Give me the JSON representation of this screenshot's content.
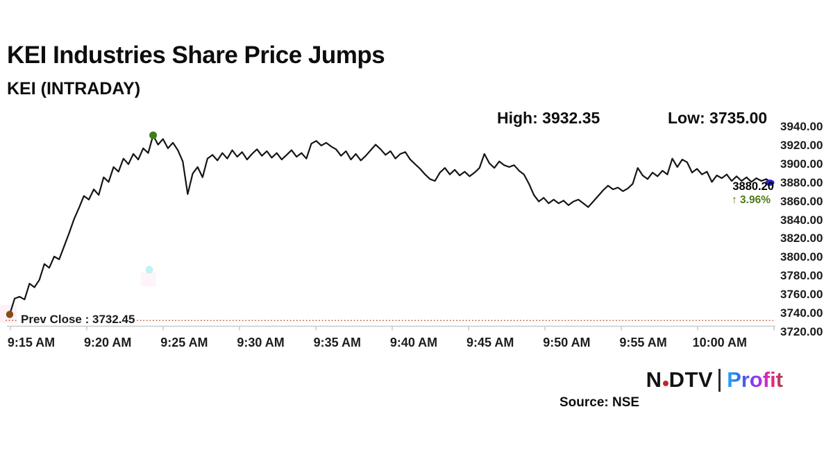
{
  "header": {
    "title": "KEI Industries Share Price Jumps",
    "subtitle": "KEI (INTRADAY)"
  },
  "stats": {
    "high_label": "High: 3932.35",
    "low_label": "Low: 3735.00"
  },
  "chart_data": {
    "type": "line",
    "title": "KEI (INTRADAY)",
    "symbol": "KEI",
    "high": 3932.35,
    "low": 3735.0,
    "prev_close": 3732.45,
    "prev_close_label": "Prev Close : 3732.45",
    "last_price": "3880.20",
    "change_pct": "↑ 3.96%",
    "x_ticks": [
      "9:15 AM",
      "9:20 AM",
      "9:25 AM",
      "9:30 AM",
      "9:35 AM",
      "9:40 AM",
      "9:45 AM",
      "9:50 AM",
      "9:55 AM",
      "10:00 AM"
    ],
    "y_ticks": [
      "3940.00",
      "3920.00",
      "3900.00",
      "3880.00",
      "3860.00",
      "3840.00",
      "3820.00",
      "3800.00",
      "3780.00",
      "3760.00",
      "3740.00",
      "3720.00"
    ],
    "ylim": [
      3720,
      3940
    ],
    "grid": false,
    "legend": "none",
    "values": [
      3739,
      3756,
      3758,
      3755,
      3772,
      3768,
      3776,
      3793,
      3789,
      3801,
      3798,
      3812,
      3826,
      3841,
      3853,
      3866,
      3862,
      3873,
      3867,
      3886,
      3881,
      3897,
      3892,
      3906,
      3900,
      3911,
      3905,
      3917,
      3912,
      3931,
      3921,
      3927,
      3917,
      3923,
      3915,
      3903,
      3868,
      3890,
      3897,
      3886,
      3906,
      3910,
      3904,
      3912,
      3906,
      3915,
      3908,
      3913,
      3905,
      3911,
      3916,
      3909,
      3914,
      3907,
      3912,
      3905,
      3910,
      3915,
      3908,
      3912,
      3906,
      3922,
      3925,
      3920,
      3923,
      3919,
      3916,
      3909,
      3914,
      3905,
      3911,
      3904,
      3909,
      3915,
      3921,
      3916,
      3910,
      3914,
      3906,
      3911,
      3913,
      3905,
      3900,
      3895,
      3889,
      3884,
      3882,
      3891,
      3896,
      3889,
      3894,
      3888,
      3892,
      3887,
      3891,
      3896,
      3911,
      3901,
      3896,
      3903,
      3899,
      3897,
      3899,
      3893,
      3889,
      3879,
      3867,
      3860,
      3864,
      3858,
      3862,
      3858,
      3861,
      3856,
      3860,
      3862,
      3858,
      3854,
      3860,
      3866,
      3872,
      3877,
      3873,
      3875,
      3871,
      3874,
      3879,
      3896,
      3888,
      3884,
      3891,
      3887,
      3893,
      3889,
      3906,
      3897,
      3905,
      3902,
      3891,
      3895,
      3889,
      3892,
      3881,
      3888,
      3885,
      3889,
      3882,
      3887,
      3882,
      3886,
      3881,
      3885,
      3882,
      3884,
      3880.2
    ],
    "high_marker_index": 29,
    "colors": {
      "line": "#141414",
      "open_marker": "#8a4a15",
      "high_marker": "#3f7d1f",
      "last_marker": "#2424cf",
      "prev_close_line": "#bd6b40",
      "change_pct_text": "#4d7a18",
      "axis": "#c9c9c9"
    }
  },
  "footer": {
    "source": "Source: NSE",
    "logo": {
      "ndtv_left": "N",
      "ndtv_right": "DTV",
      "profit": "Profit",
      "dot_color": "#c4242b"
    }
  }
}
